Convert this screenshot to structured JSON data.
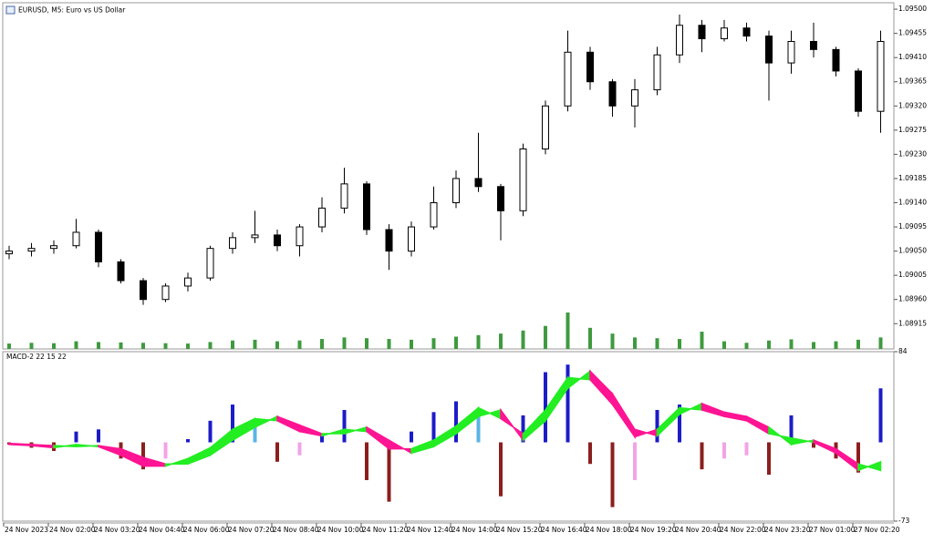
{
  "chart_data": [
    {
      "type": "candlestick",
      "title": "EURUSD, M5:  Euro vs US Dollar",
      "categories": [
        "24 Nov 2023",
        null,
        "24 Nov 02:00",
        null,
        "24 Nov 03:20",
        null,
        "24 Nov 04:40",
        null,
        "24 Nov 06:00",
        null,
        "24 Nov 07:20",
        null,
        "24 Nov 08:40",
        null,
        "24 Nov 10:00",
        null,
        "24 Nov 11:20",
        null,
        "24 Nov 12:40",
        null,
        "24 Nov 14:00",
        null,
        "24 Nov 15:20",
        null,
        "24 Nov 16:40",
        null,
        "24 Nov 18:00",
        null,
        "24 Nov 19:20",
        null,
        "24 Nov 20:40",
        null,
        "24 Nov 22:00",
        null,
        "24 Nov 23:20",
        null,
        "27 Nov 01:00",
        null,
        "27 Nov 02:20",
        null
      ],
      "open": [
        1.09045,
        1.0905,
        1.09055,
        1.0906,
        1.09085,
        1.0903,
        1.08995,
        1.0896,
        1.08985,
        1.09,
        1.09055,
        1.09075,
        1.0908,
        1.0906,
        1.09095,
        1.0913,
        1.09175,
        1.0909,
        1.0905,
        1.09095,
        1.0914,
        1.09185,
        1.0917,
        1.09125,
        1.0924,
        1.0932,
        1.0942,
        1.09365,
        1.0932,
        1.0935,
        1.09415,
        1.0947,
        1.09445,
        1.09465,
        1.0945,
        1.094,
        1.0944,
        1.09425,
        1.09385,
        1.0931
      ],
      "high": [
        1.0906,
        1.09065,
        1.0907,
        1.0911,
        1.0909,
        1.09035,
        1.09,
        1.0899,
        1.0901,
        1.0906,
        1.09085,
        1.09125,
        1.0909,
        1.091,
        1.0915,
        1.09205,
        1.0918,
        1.091,
        1.09105,
        1.0917,
        1.092,
        1.0927,
        1.09175,
        1.0925,
        1.0933,
        1.0946,
        1.0943,
        1.0937,
        1.0937,
        1.0943,
        1.0949,
        1.0948,
        1.0948,
        1.09475,
        1.0946,
        1.0946,
        1.09475,
        1.0943,
        1.0939,
        1.0946
      ],
      "low": [
        1.09035,
        1.0904,
        1.09045,
        1.09055,
        1.0902,
        1.0899,
        1.0895,
        1.08955,
        1.08975,
        1.08995,
        1.09045,
        1.09065,
        1.0905,
        1.0904,
        1.09085,
        1.0912,
        1.0908,
        1.09015,
        1.0904,
        1.0909,
        1.0913,
        1.0916,
        1.0907,
        1.09115,
        1.0923,
        1.0931,
        1.0935,
        1.093,
        1.0928,
        1.0934,
        1.094,
        1.0942,
        1.0944,
        1.0944,
        1.0933,
        1.0938,
        1.0941,
        1.09375,
        1.093,
        1.0927
      ],
      "close": [
        1.0905,
        1.09055,
        1.0906,
        1.09085,
        1.0903,
        1.08995,
        1.0896,
        1.08985,
        1.09,
        1.09055,
        1.09075,
        1.0908,
        1.0906,
        1.09095,
        1.0913,
        1.09175,
        1.0909,
        1.0905,
        1.09095,
        1.0914,
        1.09185,
        1.0917,
        1.09125,
        1.0924,
        1.0932,
        1.0942,
        1.09365,
        1.0932,
        1.0935,
        1.09415,
        1.0947,
        1.09445,
        1.09465,
        1.0945,
        1.094,
        1.0944,
        1.09425,
        1.09385,
        1.0931,
        1.0944
      ],
      "volume": [
        14,
        16,
        15,
        20,
        18,
        17,
        16,
        15,
        14,
        18,
        22,
        24,
        20,
        22,
        26,
        30,
        28,
        26,
        24,
        28,
        32,
        36,
        40,
        48,
        60,
        95,
        55,
        40,
        30,
        28,
        26,
        45,
        20,
        16,
        22,
        25,
        18,
        20,
        24,
        30
      ],
      "ylim": [
        1.08868,
        1.09512
      ],
      "yticks": [
        {
          "value": 1.095,
          "label": "1.09500"
        },
        1.09455,
        {
          "value": 1.0941,
          "label": "1.09410"
        },
        1.09365,
        {
          "value": 1.0932,
          "label": "1.09320"
        },
        1.09275,
        {
          "value": 1.0923,
          "label": "1.09230"
        },
        1.09185,
        {
          "value": 1.0914,
          "label": "1.09140"
        },
        1.09095,
        {
          "value": 1.0905,
          "label": "1.09050"
        },
        1.09005,
        {
          "value": 1.0896,
          "label": "1.08960"
        },
        1.08915
      ],
      "color": "#000000",
      "volume_color": "#3f9a3f"
    },
    {
      "type": "macd",
      "title": "MACD-2 22 15 22",
      "values": [
        -2,
        -5,
        -8,
        10,
        12,
        -15,
        -25,
        -15,
        3,
        20,
        35,
        15,
        -18,
        -12,
        8,
        30,
        -35,
        -55,
        10,
        28,
        38,
        30,
        -50,
        25,
        65,
        72,
        -20,
        -60,
        -35,
        30,
        35,
        -25,
        -15,
        -12,
        -30,
        25,
        -5,
        -15,
        -28,
        50
      ],
      "line_a": [
        -2,
        -3,
        -5,
        -2,
        -4,
        -12,
        -22,
        -22,
        -15,
        -5,
        12,
        22,
        20,
        10,
        6,
        12,
        10,
        -6,
        -6,
        2,
        15,
        32,
        22,
        8,
        30,
        60,
        58,
        35,
        5,
        12,
        32,
        30,
        24,
        20,
        8,
        4,
        0,
        -10,
        -26,
        -18
      ],
      "line_b": [
        -1,
        -2,
        -3,
        -4,
        -3,
        -6,
        -14,
        -20,
        -20,
        -12,
        2,
        14,
        24,
        16,
        8,
        8,
        14,
        2,
        -10,
        -4,
        8,
        24,
        30,
        2,
        20,
        50,
        66,
        45,
        12,
        6,
        26,
        36,
        28,
        24,
        14,
        -2,
        2,
        -6,
        -20,
        -26
      ],
      "ylim": [
        -73,
        84
      ],
      "yticks": [
        84,
        -73
      ],
      "colors": {
        "positive_rising": "#1c1cc8",
        "positive_falling": "#5ab4e6",
        "negative_falling": "#8b1f1f",
        "negative_rising": "#f2a4e6",
        "ribbon_up": "#22ee22",
        "ribbon_down": "#ff1493"
      }
    }
  ]
}
